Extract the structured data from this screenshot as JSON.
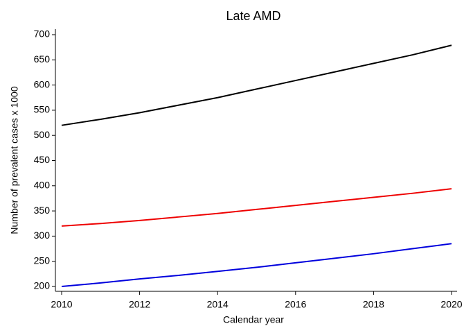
{
  "chart_data": {
    "type": "line",
    "title": "Late AMD",
    "x_label": "Calendar year",
    "y_label": "Number of prevalent cases x 1000",
    "x": [
      2010,
      2011,
      2012,
      2013,
      2014,
      2015,
      2016,
      2017,
      2018,
      2019,
      2020
    ],
    "series": [
      {
        "color": "#000000",
        "values": [
          520,
          532,
          545,
          560,
          575,
          592,
          609,
          626,
          643,
          660,
          679
        ]
      },
      {
        "color": "#ee0000",
        "values": [
          320,
          325,
          331,
          338,
          345,
          353,
          361,
          369,
          377,
          385,
          394
        ]
      },
      {
        "color": "#0000dd",
        "values": [
          200,
          207,
          215,
          222,
          230,
          238,
          247,
          256,
          265,
          275,
          285
        ]
      }
    ],
    "xlim": [
      2010,
      2020
    ],
    "xticks": [
      2010,
      2012,
      2014,
      2016,
      2018,
      2020
    ],
    "ylim": [
      200,
      700
    ],
    "yticks": [
      200,
      250,
      300,
      350,
      400,
      450,
      500,
      550,
      600,
      650,
      700
    ],
    "grid": false
  }
}
